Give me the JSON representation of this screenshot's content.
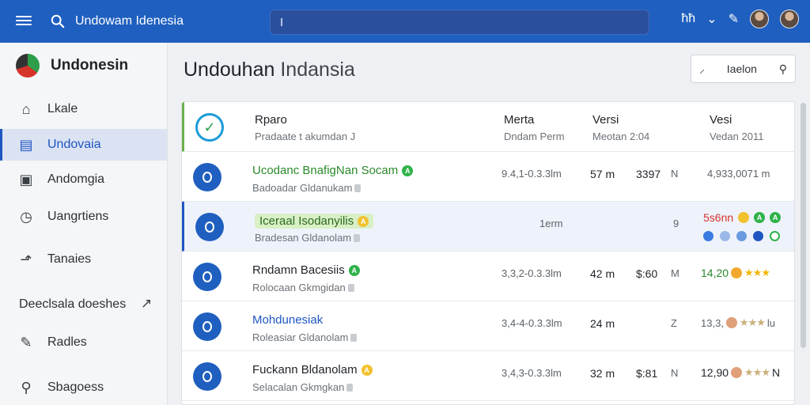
{
  "topbar": {
    "title": "Undowam Idenesia",
    "search_value": "I",
    "glyph_1": "ħħ",
    "glyph_2": "⌄",
    "glyph_3": "✎"
  },
  "sidebar": {
    "brand": "Undonesin",
    "items": [
      {
        "label": "Lkale",
        "icon": "⌂"
      },
      {
        "label": "Undovaia",
        "icon": "▤"
      },
      {
        "label": "Andomgia",
        "icon": "▣"
      },
      {
        "label": "Uangrtiens",
        "icon": "◷"
      },
      {
        "label": "Tanaies",
        "icon": "⬏"
      }
    ],
    "section_label": "Deeclsala doeshes",
    "section_arrow": "↗",
    "items2": [
      {
        "label": "Radles",
        "icon": "✎"
      },
      {
        "label": "Sbagoess",
        "icon": "⚲"
      }
    ]
  },
  "main": {
    "title_bold": "Undouhan",
    "title_light": "Indansia",
    "filter_label": "Iaelon",
    "filter_icon_left": "⸝",
    "filter_icon_right": "⚲"
  },
  "table": {
    "header": {
      "col1_main": "Rparo",
      "col1_sub": "Pradaate t akumdan J",
      "col2_main": "Merta",
      "col2_sub": "Dndam Perm",
      "col3_main": "Versi",
      "col3_sub": "Meotan 2:04",
      "col4_main": "Vesi",
      "col4_sub": "Vedan 2011"
    },
    "rows": [
      {
        "name": "Ucodanc BnafigNan Socam",
        "sub": "Badoadar Gldanukam",
        "range": "9.4,1-0.3.3lm",
        "size": "57 m",
        "num": "3397",
        "code": "N",
        "right": "4,933,0071 m"
      },
      {
        "name": "Iceraal Isodanyilis",
        "sub": "Bradesan Gldanolam",
        "range": "1erm",
        "size": "",
        "num": "9",
        "code": "",
        "right": "5s6nn"
      },
      {
        "name": "Rndamn Bacesiis",
        "sub": "Rolocaan Gkmgidan",
        "range": "3,3,2-0.3.3lm",
        "size": "42 m",
        "num": "$:60",
        "code": "M",
        "right": "14,20"
      },
      {
        "name": "Mohdunesiak",
        "sub": "Roleasiar Gldanolam",
        "range": "3,4-4-0.3.3lm",
        "size": "24 m",
        "num": "Z",
        "code": "",
        "right": "13,3,"
      },
      {
        "name": "Fuckann Bldanolam",
        "sub": "Selacalan Gkmgkan",
        "range": "3,4,3-0.3.3lm",
        "size": "32 m",
        "num": "$:81",
        "code": "N",
        "right": "12,90"
      }
    ],
    "badges": {
      "green": "A",
      "yellow": "A"
    }
  },
  "colors": {
    "accent": "#1f5fbf",
    "active_bg": "#dbe3f3",
    "green": "#2fb24a",
    "yellow": "#f2c12e"
  },
  "rating": {
    "row3": "★★★",
    "row4": "★★★",
    "row5": "★★★",
    "row4_trailing": "lu",
    "row5_trailing": "N"
  }
}
